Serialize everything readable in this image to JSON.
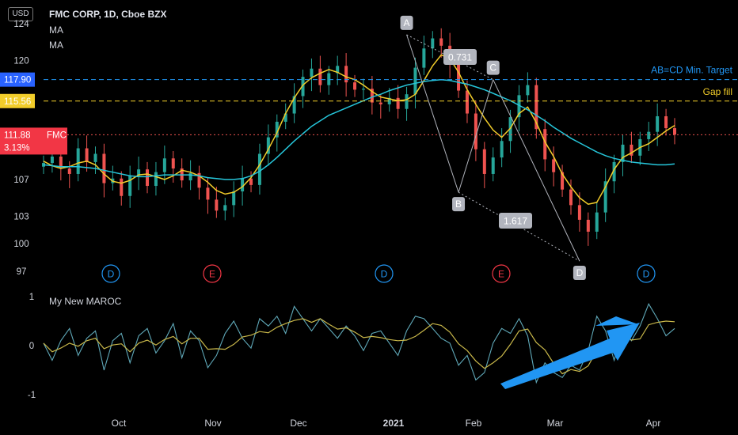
{
  "header": {
    "currency": "USD",
    "title": "FMC CORP, 1D, Cboe BZX",
    "ma_labels": [
      "MA",
      "MA"
    ]
  },
  "price_axis": {
    "ticks": [
      124,
      120,
      107,
      103,
      100,
      97
    ]
  },
  "price_tags": {
    "target": {
      "value": "117.90",
      "color": "#2962ff"
    },
    "gapfill": {
      "value": "115.56",
      "color": "#f2cd2a"
    },
    "last": {
      "value": "111.88",
      "symbol": "FMC",
      "change": "3.13%",
      "color": "#f23645"
    }
  },
  "indicator": {
    "title": "My New MAROC",
    "ticks": [
      "1",
      "0",
      "-1"
    ]
  },
  "time_axis": [
    "Oct",
    "Nov",
    "Dec",
    "2021",
    "Feb",
    "Mar",
    "Apr"
  ],
  "annotations": {
    "target_label": "AB=CD Min. Target",
    "gap_label": "Gap fill",
    "ratio_1": "0.731",
    "ratio_2": "1.617",
    "points": [
      "A",
      "B",
      "C",
      "D"
    ],
    "events": [
      {
        "label": "D",
        "color": "#2196f3"
      },
      {
        "label": "E",
        "color": "#f23645"
      },
      {
        "label": "D",
        "color": "#2196f3"
      },
      {
        "label": "E",
        "color": "#f23645"
      },
      {
        "label": "D",
        "color": "#2196f3"
      }
    ]
  },
  "colors": {
    "up": "#26a69a",
    "down": "#ef5350",
    "ma_fast": "#f2cd2a",
    "ma_slow": "#26c6da",
    "arrow": "#2196f3"
  },
  "chart_data": {
    "type": "candlestick",
    "title": "FMC CORP, 1D, Cboe BZX",
    "ylim": [
      96,
      125
    ],
    "x_labels": [
      "Oct",
      "Nov",
      "Dec",
      "2021",
      "Feb",
      "Mar",
      "Apr"
    ],
    "series": [
      {
        "name": "MA",
        "values": [
          109,
          108.5,
          108.2,
          108.4,
          108.8,
          109,
          108.6,
          107.6,
          106.8,
          106.6,
          106.9,
          107.5,
          107.6,
          107.3,
          107,
          107.4,
          108,
          107.8,
          107.4,
          106.7,
          105.8,
          105.4,
          105.6,
          106.2,
          107.2,
          108.6,
          110.3,
          112.1,
          114.2,
          115.9,
          117.3,
          118.1,
          118.6,
          119,
          118.7,
          118.2,
          117.9,
          117.3,
          116.6,
          116,
          115.8,
          115.6,
          115.7,
          116.3,
          117.8,
          119.4,
          120.6,
          120.2,
          118.7,
          116.8,
          115.2,
          113.7,
          112.4,
          111.6,
          112.6,
          114.2,
          114.9,
          113.2,
          111.1,
          109.5,
          107.6,
          106.2,
          105,
          104.3,
          104.5,
          106.2,
          108.1,
          109.4,
          109.9,
          110.5,
          110.9,
          111.6,
          112.3,
          112.9
        ]
      },
      {
        "name": "MA",
        "values": [
          108.6,
          108.5,
          108.4,
          108.4,
          108.4,
          108.3,
          108.2,
          108,
          107.8,
          107.6,
          107.4,
          107.3,
          107.3,
          107.4,
          107.5,
          107.5,
          107.5,
          107.5,
          107.4,
          107.2,
          107.1,
          107,
          107,
          107.1,
          107.4,
          107.9,
          108.6,
          109.4,
          110.3,
          111.2,
          112,
          112.8,
          113.4,
          114,
          114.4,
          114.8,
          115.2,
          115.6,
          116,
          116.3,
          116.7,
          117,
          117.3,
          117.5,
          117.7,
          117.8,
          117.9,
          117.8,
          117.6,
          117.4,
          117.1,
          116.8,
          116.4,
          116,
          115.6,
          115.1,
          114.6,
          114,
          113.4,
          112.7,
          112.1,
          111.5,
          111,
          110.5,
          110,
          109.6,
          109.3,
          109.1,
          108.9,
          108.8,
          108.7,
          108.6,
          108.6,
          108.7
        ]
      }
    ],
    "ohlc_close": [
      108.8,
      109.5,
      108.2,
      107.6,
      110.4,
      108.9,
      109.8,
      106.6,
      107.1,
      105.2,
      107.4,
      108.1,
      106.3,
      107.8,
      109.3,
      108.2,
      106.9,
      107.7,
      106.1,
      104.8,
      103.6,
      104.2,
      105.7,
      107.1,
      106.4,
      109.8,
      111.6,
      113.3,
      114.2,
      116.1,
      118.2,
      119.1,
      117.3,
      118.6,
      119.4,
      117.6,
      116.8,
      116.9,
      115.4,
      115.2,
      115.9,
      114.7,
      116.3,
      119.2,
      121.3,
      122.4,
      121.6,
      119.6,
      116.7,
      114.2,
      110.3,
      107.6,
      109.4,
      111.2,
      113.8,
      116.2,
      117.3,
      112.5,
      109.2,
      107.8,
      105.9,
      104.2,
      102.6,
      101.3,
      103.4,
      106.8,
      108.9,
      110.8,
      109.6,
      111.4,
      112.2,
      113.9,
      112.6,
      111.9
    ],
    "harmonic_pattern": {
      "points": [
        {
          "label": "A",
          "y": 122.8
        },
        {
          "label": "B",
          "y": 105.6
        },
        {
          "label": "C",
          "y": 117.9
        },
        {
          "label": "D",
          "y": 98.1
        }
      ],
      "ratios": [
        "0.731",
        "1.617"
      ]
    },
    "levels": [
      {
        "label": "AB=CD Min. Target",
        "value": 117.9
      },
      {
        "label": "Gap fill",
        "value": 115.56
      },
      {
        "label": "FMC",
        "value": 111.88
      }
    ],
    "indicator": {
      "name": "My New MAROC",
      "ylim": [
        -1.2,
        1.2
      ],
      "values": [
        0.05,
        -0.3,
        0.1,
        0.35,
        -0.2,
        0.15,
        0.3,
        -0.5,
        0.1,
        0.25,
        -0.35,
        0.2,
        0.35,
        -0.15,
        0.1,
        0.45,
        -0.25,
        0.3,
        0.1,
        -0.45,
        -0.2,
        0.25,
        0.5,
        0.15,
        -0.05,
        0.55,
        0.4,
        0.6,
        0.25,
        0.8,
        0.55,
        0.3,
        0.55,
        0.35,
        0.15,
        0.4,
        0.2,
        -0.1,
        0.25,
        0.3,
        0.05,
        -0.2,
        0.3,
        0.6,
        0.55,
        0.35,
        0.15,
        0.05,
        -0.4,
        -0.2,
        -0.7,
        -0.55,
        0.05,
        0.35,
        0.25,
        0.55,
        0.2,
        -0.75,
        -0.35,
        -0.55,
        -0.65,
        -0.4,
        -0.5,
        -0.1,
        0.6,
        0.3,
        -0.3,
        0.35,
        0.1,
        0.4,
        0.85,
        0.55,
        0.2,
        0.35
      ]
    }
  }
}
